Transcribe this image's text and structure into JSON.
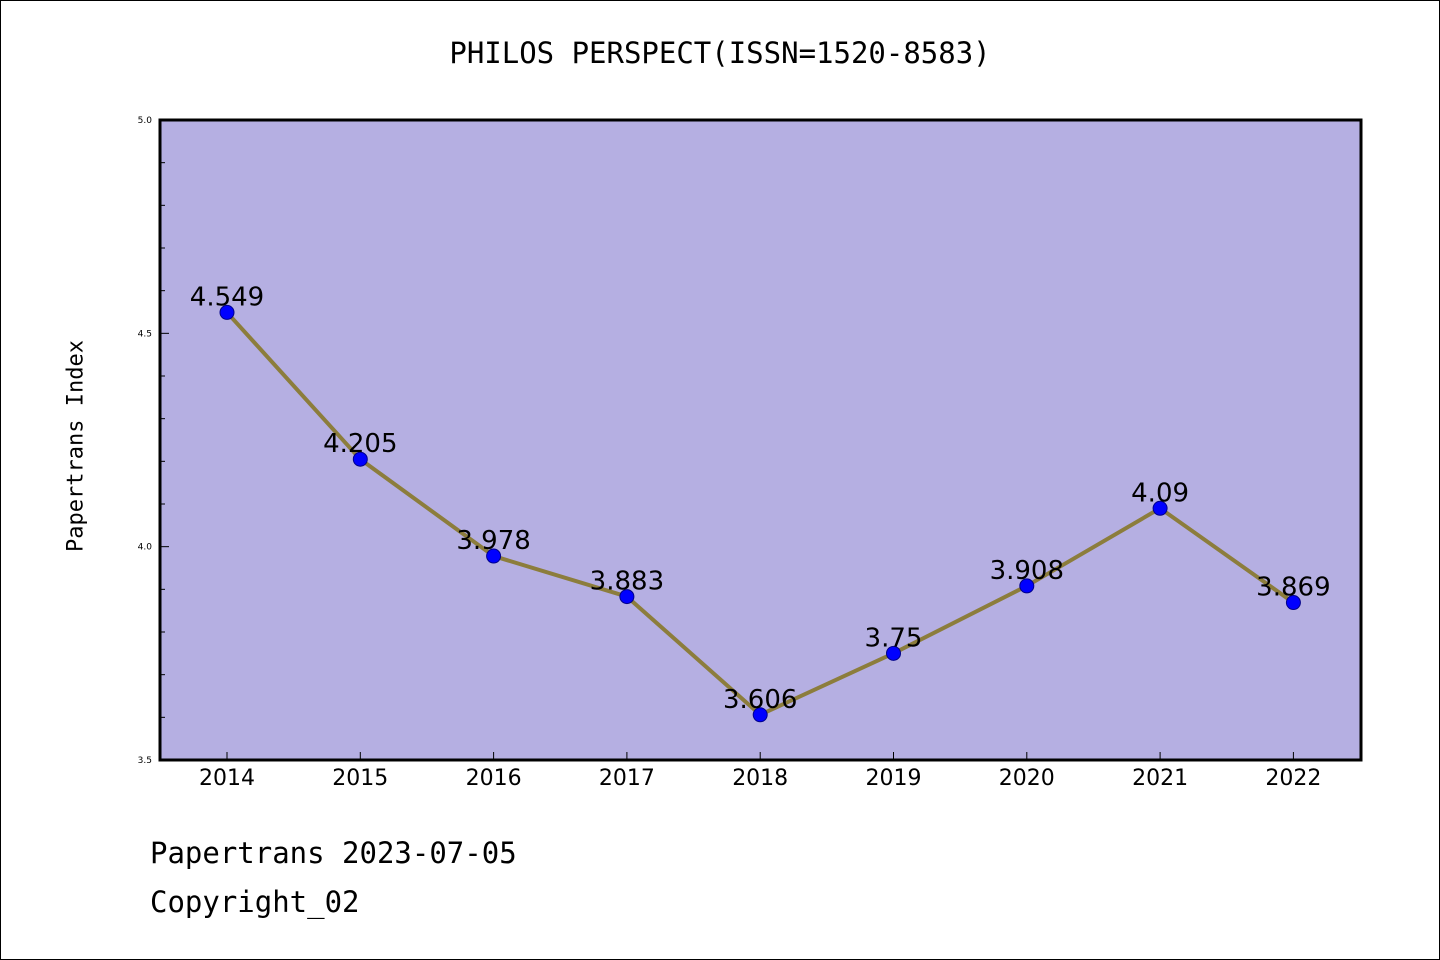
{
  "title": "PHILOS PERSPECT(ISSN=1520-8583)",
  "footer": {
    "line1": "Papertrans 2023-07-05",
    "line2": "Copyright_02"
  },
  "colors": {
    "plot_background": "#b5afe2",
    "line": "#8c7d3c",
    "marker": "#0000ff"
  },
  "chart_data": {
    "type": "line",
    "title": "PHILOS PERSPECT(ISSN=1520-8583)",
    "xlabel": "",
    "ylabel": "Papertrans Index",
    "categories": [
      "2014",
      "2015",
      "2016",
      "2017",
      "2018",
      "2019",
      "2020",
      "2021",
      "2022"
    ],
    "values": [
      4.549,
      4.205,
      3.978,
      3.883,
      3.606,
      3.75,
      3.908,
      4.09,
      3.869
    ],
    "data_labels": [
      "4.549",
      "4.205",
      "3.978",
      "3.883",
      "3.606",
      "3.75",
      "3.908",
      "4.09",
      "3.869"
    ],
    "ylim": [
      3.5,
      5.0
    ],
    "yticks": [
      "3.5",
      "4.0",
      "4.5",
      "5.0"
    ],
    "grid": false,
    "legend": "none"
  }
}
